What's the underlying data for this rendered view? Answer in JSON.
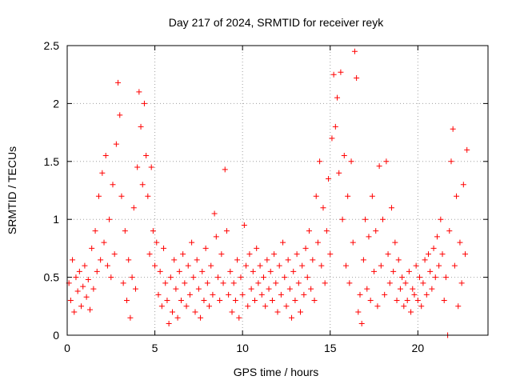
{
  "chart_data": {
    "type": "scatter",
    "title": "Day 217 of 2024, SRMTID for receiver reyk",
    "xlabel": "GPS time / hours",
    "ylabel": "SRMTID / TECUs",
    "xlim": [
      0,
      24
    ],
    "ylim": [
      0,
      2.5
    ],
    "xticks": [
      0,
      5,
      10,
      15,
      20
    ],
    "xtick_labels": [
      "0",
      "5",
      "10",
      "15",
      "20"
    ],
    "yticks": [
      0,
      0.5,
      1,
      1.5,
      2,
      2.5
    ],
    "ytick_labels": [
      "0",
      "0.5",
      "1",
      "1.5",
      "2",
      "2.5"
    ],
    "grid": true,
    "marker": "+",
    "color": "#ff0000",
    "series": [
      {
        "name": "SRMTID",
        "points": [
          [
            0.1,
            0.45
          ],
          [
            0.2,
            0.3
          ],
          [
            0.3,
            0.65
          ],
          [
            0.4,
            0.2
          ],
          [
            0.5,
            0.5
          ],
          [
            0.6,
            0.38
          ],
          [
            0.7,
            0.55
          ],
          [
            0.8,
            0.25
          ],
          [
            0.9,
            0.42
          ],
          [
            1.0,
            0.6
          ],
          [
            1.1,
            0.33
          ],
          [
            1.2,
            0.48
          ],
          [
            1.3,
            0.22
          ],
          [
            1.4,
            0.75
          ],
          [
            1.5,
            0.4
          ],
          [
            1.6,
            0.9
          ],
          [
            1.7,
            0.55
          ],
          [
            1.8,
            1.2
          ],
          [
            1.9,
            0.65
          ],
          [
            2.0,
            1.4
          ],
          [
            2.1,
            0.8
          ],
          [
            2.2,
            1.55
          ],
          [
            2.3,
            0.6
          ],
          [
            2.4,
            1.0
          ],
          [
            2.5,
            0.5
          ],
          [
            2.6,
            1.3
          ],
          [
            2.7,
            0.7
          ],
          [
            2.8,
            1.65
          ],
          [
            2.9,
            2.18
          ],
          [
            3.0,
            1.9
          ],
          [
            3.1,
            1.2
          ],
          [
            3.2,
            0.45
          ],
          [
            3.3,
            0.9
          ],
          [
            3.4,
            0.3
          ],
          [
            3.5,
            0.65
          ],
          [
            3.6,
            0.15
          ],
          [
            3.7,
            0.5
          ],
          [
            3.8,
            1.1
          ],
          [
            3.9,
            0.4
          ],
          [
            4.0,
            1.45
          ],
          [
            4.1,
            2.1
          ],
          [
            4.2,
            1.8
          ],
          [
            4.3,
            1.3
          ],
          [
            4.4,
            2.0
          ],
          [
            4.5,
            1.55
          ],
          [
            4.6,
            1.2
          ],
          [
            4.7,
            0.7
          ],
          [
            4.8,
            1.45
          ],
          [
            4.9,
            0.9
          ],
          [
            5.0,
            0.6
          ],
          [
            5.1,
            0.8
          ],
          [
            5.2,
            0.35
          ],
          [
            5.3,
            0.55
          ],
          [
            5.4,
            0.25
          ],
          [
            5.5,
            0.75
          ],
          [
            5.6,
            0.45
          ],
          [
            5.7,
            0.3
          ],
          [
            5.8,
            0.1
          ],
          [
            5.9,
            0.5
          ],
          [
            6.0,
            0.2
          ],
          [
            6.1,
            0.65
          ],
          [
            6.2,
            0.4
          ],
          [
            6.3,
            0.15
          ],
          [
            6.4,
            0.55
          ],
          [
            6.5,
            0.3
          ],
          [
            6.6,
            0.7
          ],
          [
            6.7,
            0.45
          ],
          [
            6.8,
            0.25
          ],
          [
            6.9,
            0.6
          ],
          [
            7.0,
            0.35
          ],
          [
            7.1,
            0.8
          ],
          [
            7.2,
            0.5
          ],
          [
            7.3,
            0.2
          ],
          [
            7.4,
            0.65
          ],
          [
            7.5,
            0.4
          ],
          [
            7.6,
            0.15
          ],
          [
            7.7,
            0.55
          ],
          [
            7.8,
            0.3
          ],
          [
            7.9,
            0.75
          ],
          [
            8.0,
            0.45
          ],
          [
            8.1,
            0.25
          ],
          [
            8.2,
            0.6
          ],
          [
            8.3,
            0.35
          ],
          [
            8.4,
            1.05
          ],
          [
            8.5,
            0.85
          ],
          [
            8.6,
            0.5
          ],
          [
            8.7,
            0.3
          ],
          [
            8.8,
            0.7
          ],
          [
            8.9,
            0.45
          ],
          [
            9.0,
            1.43
          ],
          [
            9.1,
            0.9
          ],
          [
            9.2,
            0.35
          ],
          [
            9.3,
            0.55
          ],
          [
            9.4,
            0.2
          ],
          [
            9.5,
            0.45
          ],
          [
            9.6,
            0.3
          ],
          [
            9.7,
            0.65
          ],
          [
            9.8,
            0.15
          ],
          [
            9.9,
            0.5
          ],
          [
            10.0,
            0.35
          ],
          [
            10.1,
            0.95
          ],
          [
            10.2,
            0.6
          ],
          [
            10.3,
            0.25
          ],
          [
            10.4,
            0.7
          ],
          [
            10.5,
            0.4
          ],
          [
            10.6,
            0.55
          ],
          [
            10.7,
            0.3
          ],
          [
            10.8,
            0.75
          ],
          [
            10.9,
            0.45
          ],
          [
            11.0,
            0.6
          ],
          [
            11.1,
            0.35
          ],
          [
            11.2,
            0.5
          ],
          [
            11.3,
            0.25
          ],
          [
            11.4,
            0.65
          ],
          [
            11.5,
            0.4
          ],
          [
            11.6,
            0.55
          ],
          [
            11.7,
            0.3
          ],
          [
            11.8,
            0.7
          ],
          [
            11.9,
            0.45
          ],
          [
            12.0,
            0.2
          ],
          [
            12.1,
            0.6
          ],
          [
            12.2,
            0.35
          ],
          [
            12.3,
            0.8
          ],
          [
            12.4,
            0.5
          ],
          [
            12.5,
            0.25
          ],
          [
            12.6,
            0.65
          ],
          [
            12.7,
            0.4
          ],
          [
            12.8,
            0.15
          ],
          [
            12.9,
            0.55
          ],
          [
            13.0,
            0.3
          ],
          [
            13.1,
            0.7
          ],
          [
            13.2,
            0.45
          ],
          [
            13.3,
            0.2
          ],
          [
            13.4,
            0.6
          ],
          [
            13.5,
            0.35
          ],
          [
            13.6,
            0.75
          ],
          [
            13.7,
            0.5
          ],
          [
            13.8,
            0.9
          ],
          [
            13.9,
            0.4
          ],
          [
            14.0,
            0.65
          ],
          [
            14.1,
            0.3
          ],
          [
            14.2,
            1.2
          ],
          [
            14.3,
            0.8
          ],
          [
            14.4,
            1.5
          ],
          [
            14.5,
            0.6
          ],
          [
            14.6,
            1.1
          ],
          [
            14.7,
            0.45
          ],
          [
            14.8,
            0.9
          ],
          [
            14.9,
            1.35
          ],
          [
            15.0,
            0.7
          ],
          [
            15.1,
            1.7
          ],
          [
            15.2,
            2.25
          ],
          [
            15.3,
            1.8
          ],
          [
            15.4,
            2.05
          ],
          [
            15.5,
            1.4
          ],
          [
            15.6,
            2.27
          ],
          [
            15.7,
            1.0
          ],
          [
            15.8,
            1.55
          ],
          [
            15.9,
            0.6
          ],
          [
            16.0,
            1.2
          ],
          [
            16.1,
            0.45
          ],
          [
            16.2,
            1.5
          ],
          [
            16.3,
            0.8
          ],
          [
            16.4,
            2.45
          ],
          [
            16.5,
            2.22
          ],
          [
            16.6,
            0.2
          ],
          [
            16.7,
            0.35
          ],
          [
            16.8,
            0.1
          ],
          [
            16.9,
            0.65
          ],
          [
            17.0,
            1.0
          ],
          [
            17.1,
            0.4
          ],
          [
            17.2,
            0.85
          ],
          [
            17.3,
            0.3
          ],
          [
            17.4,
            1.2
          ],
          [
            17.5,
            0.55
          ],
          [
            17.6,
            0.9
          ],
          [
            17.7,
            0.25
          ],
          [
            17.8,
            1.46
          ],
          [
            17.9,
            0.6
          ],
          [
            18.0,
            1.0
          ],
          [
            18.1,
            0.35
          ],
          [
            18.2,
            1.5
          ],
          [
            18.3,
            0.7
          ],
          [
            18.4,
            0.45
          ],
          [
            18.5,
            1.1
          ],
          [
            18.6,
            0.55
          ],
          [
            18.7,
            0.8
          ],
          [
            18.8,
            0.3
          ],
          [
            18.9,
            0.65
          ],
          [
            19.0,
            0.4
          ],
          [
            19.1,
            0.5
          ],
          [
            19.2,
            0.25
          ],
          [
            19.3,
            0.45
          ],
          [
            19.4,
            0.3
          ],
          [
            19.5,
            0.55
          ],
          [
            19.6,
            0.2
          ],
          [
            19.7,
            0.4
          ],
          [
            19.8,
            0.35
          ],
          [
            19.9,
            0.6
          ],
          [
            20.0,
            0.3
          ],
          [
            20.1,
            0.5
          ],
          [
            20.2,
            0.25
          ],
          [
            20.3,
            0.45
          ],
          [
            20.4,
            0.65
          ],
          [
            20.5,
            0.35
          ],
          [
            20.6,
            0.7
          ],
          [
            20.7,
            0.55
          ],
          [
            20.8,
            0.4
          ],
          [
            20.9,
            0.75
          ],
          [
            21.0,
            0.5
          ],
          [
            21.1,
            0.85
          ],
          [
            21.2,
            0.6
          ],
          [
            21.3,
            1.0
          ],
          [
            21.4,
            0.7
          ],
          [
            21.5,
            0.3
          ],
          [
            21.6,
            0.5
          ],
          [
            21.7,
            0.0
          ],
          [
            21.8,
            0.9
          ],
          [
            21.9,
            1.5
          ],
          [
            22.0,
            1.78
          ],
          [
            22.1,
            0.6
          ],
          [
            22.2,
            1.2
          ],
          [
            22.3,
            0.25
          ],
          [
            22.4,
            0.8
          ],
          [
            22.5,
            0.45
          ],
          [
            22.6,
            1.3
          ],
          [
            22.7,
            0.7
          ],
          [
            22.8,
            1.6
          ]
        ]
      }
    ]
  }
}
